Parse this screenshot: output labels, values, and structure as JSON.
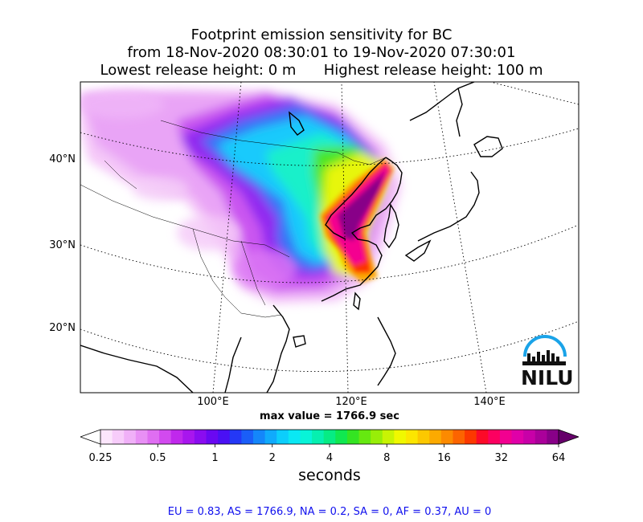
{
  "title": {
    "line1": "Footprint emission sensitivity for BC",
    "line2": "from 18-Nov-2020 08:30:01 to 19-Nov-2020 07:30:01",
    "line3": "Lowest release height: 0 m      Highest release height: 100 m"
  },
  "map": {
    "lat_labels": [
      "40°N",
      "30°N",
      "20°N"
    ],
    "lon_labels": [
      "100°E",
      "120°E",
      "140°E"
    ],
    "max_value": "max value = 1766.9 sec",
    "logo_text": "NILU",
    "logo_color": "#1aa3e8"
  },
  "colorbar": {
    "unit": "seconds",
    "ticks": [
      "0.25",
      "0.5",
      "1",
      "2",
      "4",
      "8",
      "16",
      "32",
      "64"
    ],
    "colors": [
      "#ffffff",
      "#fce6fc",
      "#f7ccfa",
      "#f0b0f8",
      "#e890f5",
      "#df6ef2",
      "#d24aef",
      "#c028ec",
      "#a816ee",
      "#8a0cf0",
      "#6a08f2",
      "#4a10f4",
      "#2438f6",
      "#1a5ef8",
      "#1486fa",
      "#10aafc",
      "#0ccefc",
      "#0ae8f4",
      "#08f4d8",
      "#06f0b0",
      "#06ec84",
      "#10e850",
      "#34e422",
      "#66e810",
      "#98ee08",
      "#c8f404",
      "#f0f800",
      "#fce600",
      "#fcc800",
      "#fcaa00",
      "#fc8a00",
      "#fc6400",
      "#fc3800",
      "#fc0a28",
      "#fc0060",
      "#f20090",
      "#e000a8",
      "#c800a8",
      "#aa009a",
      "#880088",
      "#66006a"
    ]
  },
  "stats": "EU = 0.83,  AS = 1766.9,  NA = 0.2,  SA = 0,  AF = 0.37,  AU = 0"
}
